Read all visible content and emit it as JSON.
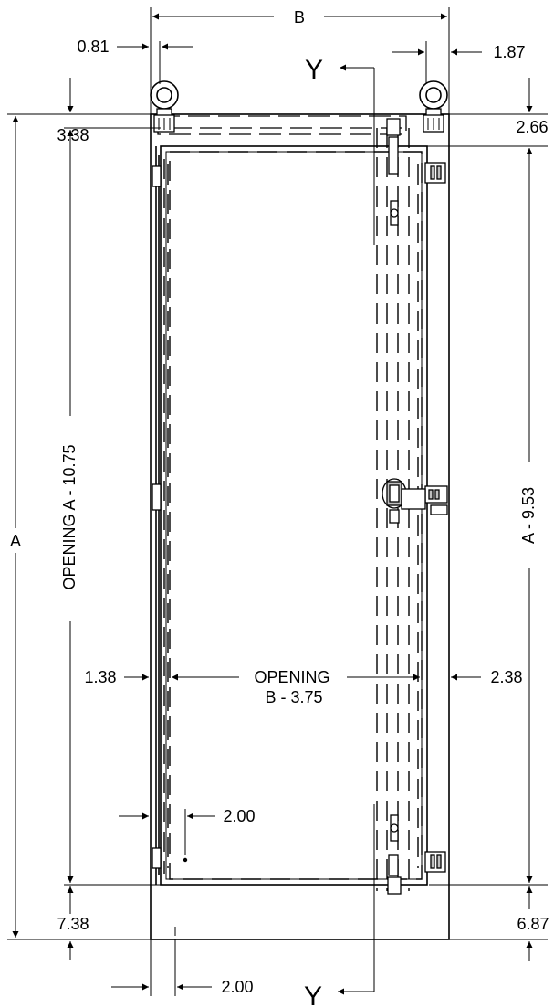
{
  "drawing": {
    "view_marker": "Y",
    "labels": {
      "overall_width": "B",
      "overall_height": "A",
      "lift_ring_left": "0.81",
      "lift_ring_right": "1.87",
      "top_left": "3.38",
      "top_right": "2.66",
      "opening_height": "OPENING A - 10.75",
      "panel_height": "A - 9.53",
      "left_flange": "1.38",
      "opening_width_line1": "OPENING",
      "opening_width_line2": "B - 3.75",
      "right_flange": "2.38",
      "inner_offset": "2.00",
      "bottom_left": "7.38",
      "bottom_right": "6.87",
      "bottom_offset": "2.00"
    }
  }
}
